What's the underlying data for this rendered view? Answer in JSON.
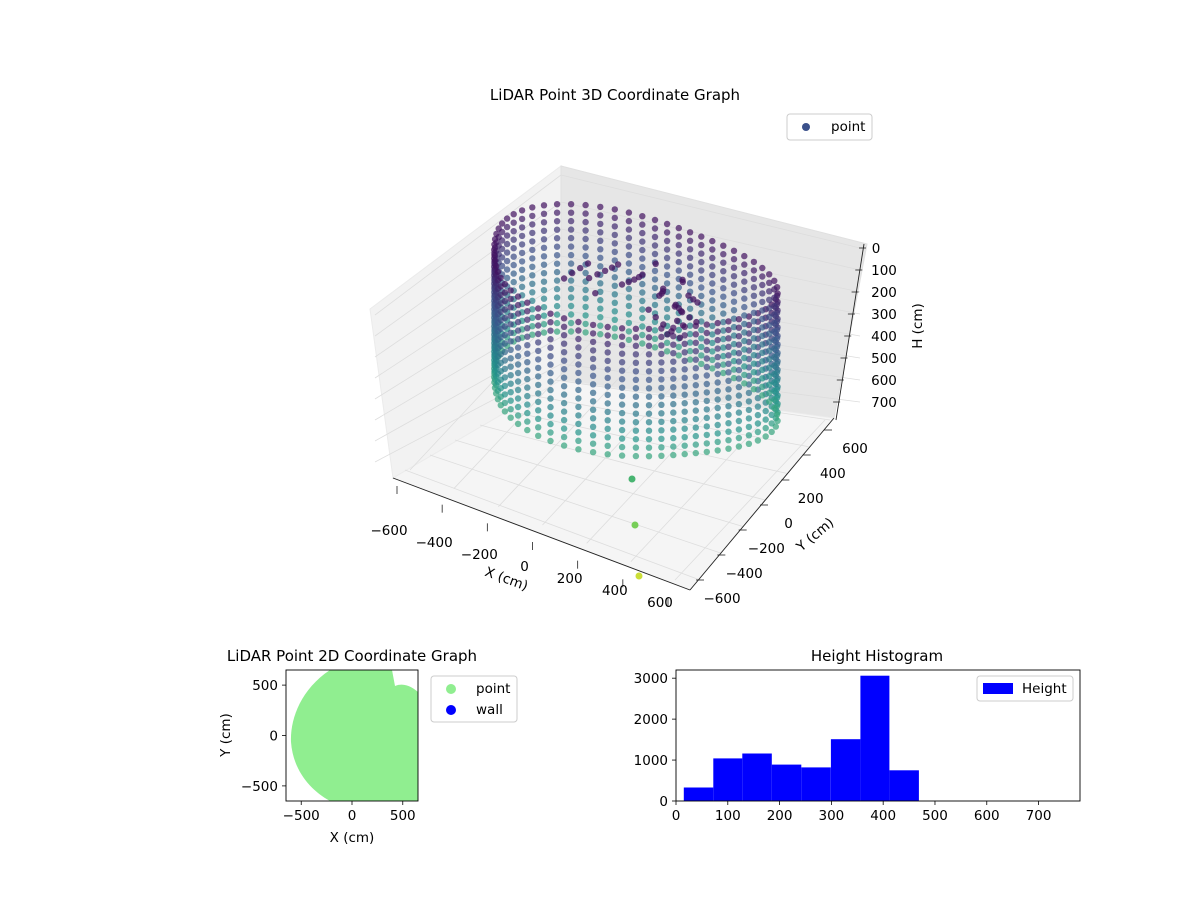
{
  "chart_data": [
    {
      "type": "scatter3d",
      "title": "LiDAR Point 3D Coordinate Graph",
      "xlabel": "X (cm)",
      "ylabel": "Y (cm)",
      "zlabel": "H (cm)",
      "xlim": [
        -650,
        650
      ],
      "ylim": [
        -650,
        650
      ],
      "zlim": [
        0,
        760
      ],
      "z_inverted": true,
      "xticks": [
        "−600",
        "−400",
        "−200",
        "0",
        "200",
        "400",
        "600"
      ],
      "yticks": [
        "−600",
        "−400",
        "−200",
        "0",
        "200",
        "400",
        "600"
      ],
      "zticks": [
        "0",
        "100",
        "200",
        "300",
        "400",
        "500",
        "600",
        "700"
      ],
      "legend": {
        "label": "point",
        "placement": "top-right"
      },
      "colormap": "viridis",
      "series": [
        {
          "name": "point",
          "description": "dense ring of scan points ~500–600 cm radius, heights ~0–460 cm",
          "outliers": [
            {
              "x": 430,
              "y": -320,
              "h": 500
            },
            {
              "x": 470,
              "y": -420,
              "h": 600
            },
            {
              "x": 520,
              "y": -520,
              "h": 700
            }
          ]
        }
      ],
      "colors": {
        "marker": "#3b518b"
      }
    },
    {
      "type": "scatter",
      "title": "LiDAR Point 2D Coordinate Graph",
      "xlabel": "X (cm)",
      "ylabel": "Y (cm)",
      "xlim": [
        -650,
        650
      ],
      "ylim": [
        -650,
        650
      ],
      "xticks": [
        "−500",
        "0",
        "500"
      ],
      "yticks": [
        "−500",
        "0",
        "500"
      ],
      "legend": [
        {
          "label": "point",
          "color": "#90ee90"
        },
        {
          "label": "wall",
          "color": "#0000ff"
        }
      ],
      "legend_placement": "right"
    },
    {
      "type": "bar",
      "title": "Height Histogram",
      "xlabel": "",
      "ylabel": "",
      "series": [
        {
          "name": "Height",
          "color": "#0000ff"
        }
      ],
      "bins": [
        {
          "x0": 15,
          "x1": 72,
          "value": 330
        },
        {
          "x0": 72,
          "x1": 128,
          "value": 1040
        },
        {
          "x0": 128,
          "x1": 185,
          "value": 1160
        },
        {
          "x0": 185,
          "x1": 242,
          "value": 890
        },
        {
          "x0": 242,
          "x1": 299,
          "value": 820
        },
        {
          "x0": 299,
          "x1": 356,
          "value": 1510
        },
        {
          "x0": 356,
          "x1": 412,
          "value": 3060
        },
        {
          "x0": 412,
          "x1": 469,
          "value": 750
        }
      ],
      "xlim": [
        0,
        780
      ],
      "ylim": [
        0,
        3200
      ],
      "xticks": [
        "0",
        "100",
        "200",
        "300",
        "400",
        "500",
        "600",
        "700"
      ],
      "yticks": [
        "0",
        "1000",
        "2000",
        "3000"
      ],
      "legend_placement": "top-right"
    }
  ]
}
